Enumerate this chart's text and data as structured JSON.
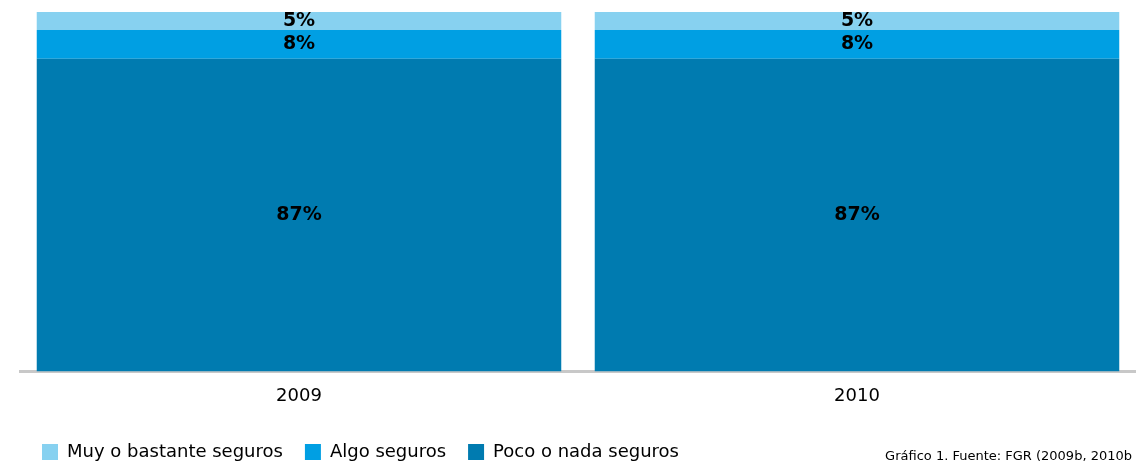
{
  "chart_data": {
    "type": "bar",
    "stacked": true,
    "categories": [
      "2009",
      "2010"
    ],
    "series": [
      {
        "name": "Poco o nada seguros",
        "color": "#007bb0",
        "values": [
          87,
          87
        ],
        "value_labels": [
          "87%",
          "87%"
        ]
      },
      {
        "name": "Algo seguros",
        "color": "#009fe3",
        "values": [
          8,
          8
        ],
        "value_labels": [
          "8%",
          "8%"
        ]
      },
      {
        "name": "Muy o bastante seguros",
        "color": "#87d1f0",
        "values": [
          5,
          5
        ],
        "value_labels": [
          "5%",
          "5%"
        ]
      }
    ],
    "legend": "bottom left",
    "grid": false,
    "tick_labels": "x",
    "annotations": [
      "Gráfico 1. Fuente: FGR (2009b, 2010b"
    ]
  }
}
